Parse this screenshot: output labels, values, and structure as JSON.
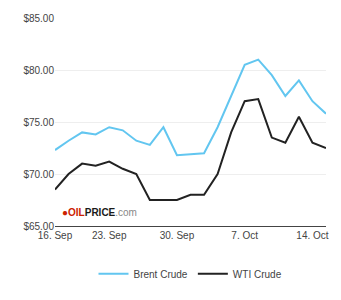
{
  "chart_data": {
    "type": "line",
    "categories": [
      "16. Sep",
      null,
      null,
      null,
      "23. Sep",
      null,
      null,
      null,
      null,
      "30. Sep",
      null,
      null,
      null,
      null,
      "7. Oct",
      null,
      null,
      null,
      null,
      "14. Oct",
      null
    ],
    "series": [
      {
        "name": "Brent Crude",
        "color": "#62c6f0",
        "values": [
          72.3,
          73.2,
          74.0,
          73.8,
          74.5,
          74.2,
          73.2,
          72.8,
          74.5,
          71.8,
          71.9,
          72.0,
          74.5,
          77.5,
          80.5,
          81.0,
          79.5,
          77.5,
          79.0,
          77.0,
          75.8
        ]
      },
      {
        "name": "WTI Crude",
        "color": "#222222",
        "values": [
          68.5,
          70.0,
          71.0,
          70.8,
          71.2,
          70.5,
          70.0,
          67.5,
          67.5,
          67.5,
          68.0,
          68.0,
          70.0,
          74.0,
          77.0,
          77.2,
          73.5,
          73.0,
          75.5,
          73.0,
          72.5
        ]
      }
    ],
    "ylim": [
      65.0,
      85.0
    ],
    "yticks": [
      {
        "value": 65.0,
        "label": "$65.00"
      },
      {
        "value": 70.0,
        "label": "$70.00"
      },
      {
        "value": 75.0,
        "label": "$75.00"
      },
      {
        "value": 80.0,
        "label": "$80.00"
      },
      {
        "value": 85.0,
        "label": "$85.00"
      }
    ],
    "grid": true,
    "legend": "bottom",
    "annotations": [
      {
        "text": "●",
        "color": "#cc2200"
      },
      {
        "text": "OIL",
        "color": "#cc2200"
      },
      {
        "text": "PRICE",
        "color": "#1a1a1a"
      },
      {
        "text": ".com",
        "color": "#888888"
      }
    ]
  }
}
